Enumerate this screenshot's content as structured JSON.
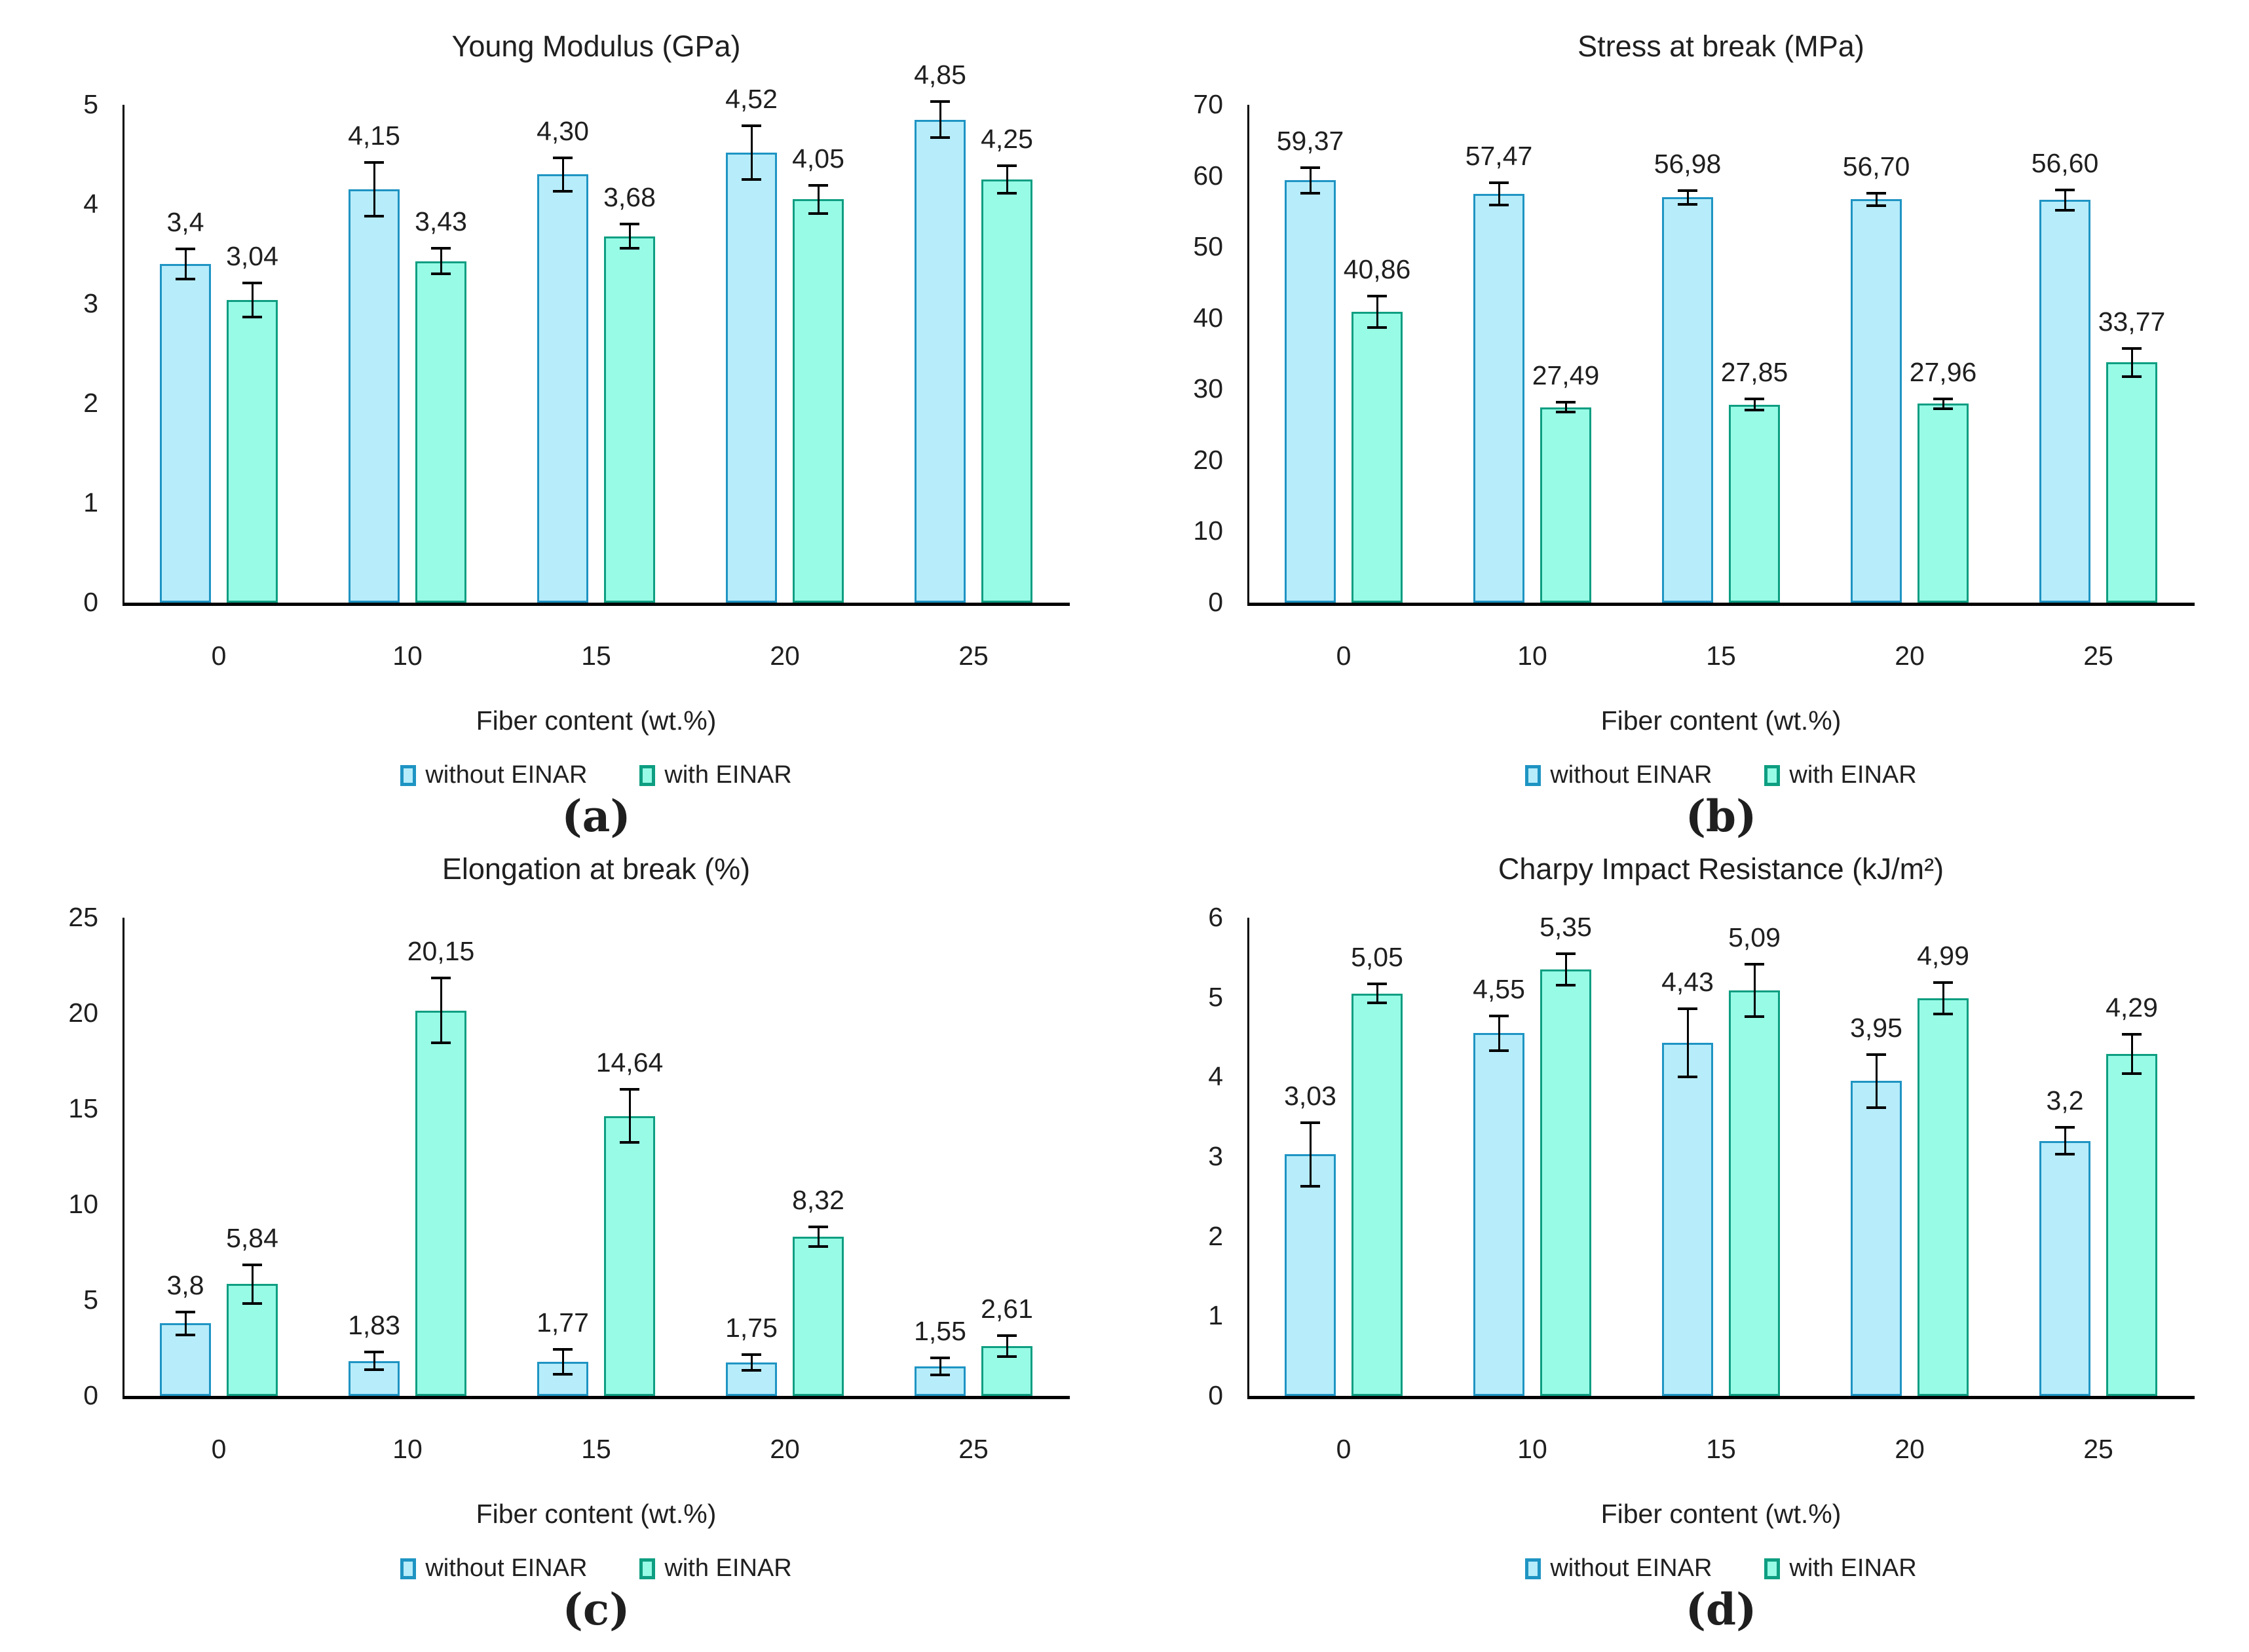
{
  "figure": {
    "xlabel": "Fiber content (wt.%)",
    "legend_labels": [
      "without EINAR",
      "with EINAR"
    ],
    "series_colors": [
      {
        "fill": "#B7ECFA",
        "border": "#1E94C3"
      },
      {
        "fill": "#98FBE6",
        "border": "#0E9E81"
      }
    ],
    "axis_color": "#000000",
    "text_color": "#1F1F1F"
  },
  "chart_data": [
    {
      "type": "bar",
      "title": "Young Modulus (GPa)",
      "caption": "(a)",
      "xlabel": "Fiber content (wt.%)",
      "ylabel": "",
      "categories": [
        "0",
        "10",
        "15",
        "20",
        "25"
      ],
      "ylim": [
        0,
        5
      ],
      "ytick_step": 1,
      "grid": false,
      "legend_position": "bottom",
      "series": [
        {
          "name": "without EINAR",
          "values": [
            3.4,
            4.15,
            4.3,
            4.52,
            4.85
          ],
          "labels": [
            "3,4",
            "4,15",
            "4,30",
            "4,52",
            "4,85"
          ],
          "errors": [
            0.15,
            0.27,
            0.17,
            0.27,
            0.18
          ]
        },
        {
          "name": "with EINAR",
          "values": [
            3.04,
            3.43,
            3.68,
            4.05,
            4.25
          ],
          "labels": [
            "3,04",
            "3,43",
            "3,68",
            "4,05",
            "4,25"
          ],
          "errors": [
            0.17,
            0.13,
            0.12,
            0.14,
            0.14
          ]
        }
      ]
    },
    {
      "type": "bar",
      "title": "Stress at break (MPa)",
      "caption": "(b)",
      "xlabel": "Fiber content (wt.%)",
      "ylabel": "",
      "categories": [
        "0",
        "10",
        "15",
        "20",
        "25"
      ],
      "ylim": [
        0,
        70
      ],
      "ytick_step": 10,
      "grid": false,
      "legend_position": "bottom",
      "series": [
        {
          "name": "without EINAR",
          "values": [
            59.37,
            57.47,
            56.98,
            56.7,
            56.6
          ],
          "labels": [
            "59,37",
            "57,47",
            "56,98",
            "56,70",
            "56,60"
          ],
          "errors": [
            1.8,
            1.6,
            1.0,
            0.9,
            1.4
          ]
        },
        {
          "name": "with EINAR",
          "values": [
            40.86,
            27.49,
            27.85,
            27.96,
            33.77
          ],
          "labels": [
            "40,86",
            "27,49",
            "27,85",
            "27,96",
            "33,77"
          ],
          "errors": [
            2.2,
            0.7,
            0.8,
            0.7,
            2.0
          ]
        }
      ]
    },
    {
      "type": "bar",
      "title": "Elongation at break (%)",
      "caption": "(c)",
      "xlabel": "Fiber content (wt.%)",
      "ylabel": "",
      "categories": [
        "0",
        "10",
        "15",
        "20",
        "25"
      ],
      "ylim": [
        0,
        25
      ],
      "ytick_step": 5,
      "grid": false,
      "legend_position": "bottom",
      "series": [
        {
          "name": "without EINAR",
          "values": [
            3.8,
            1.83,
            1.77,
            1.75,
            1.55
          ],
          "labels": [
            "3,8",
            "1,83",
            "1,77",
            "1,75",
            "1,55"
          ],
          "errors": [
            0.6,
            0.45,
            0.65,
            0.4,
            0.45
          ]
        },
        {
          "name": "with EINAR",
          "values": [
            5.84,
            20.15,
            14.64,
            8.32,
            2.61
          ],
          "labels": [
            "5,84",
            "20,15",
            "14,64",
            "8,32",
            "2,61"
          ],
          "errors": [
            1.0,
            1.7,
            1.4,
            0.5,
            0.55
          ]
        }
      ]
    },
    {
      "type": "bar",
      "title": "Charpy Impact Resistance (kJ/m²)",
      "caption": "(d)",
      "xlabel": "Fiber content (wt.%)",
      "ylabel": "",
      "categories": [
        "0",
        "10",
        "15",
        "20",
        "25"
      ],
      "ylim": [
        0,
        6
      ],
      "ytick_step": 1,
      "grid": false,
      "legend_position": "bottom",
      "series": [
        {
          "name": "without EINAR",
          "values": [
            3.03,
            4.55,
            4.43,
            3.95,
            3.2
          ],
          "labels": [
            "3,03",
            "4,55",
            "4,43",
            "3,95",
            "3,2"
          ],
          "errors": [
            0.4,
            0.22,
            0.43,
            0.33,
            0.17
          ]
        },
        {
          "name": "with EINAR",
          "values": [
            5.05,
            5.35,
            5.09,
            4.99,
            4.29
          ],
          "labels": [
            "5,05",
            "5,35",
            "5,09",
            "4,99",
            "4,29"
          ],
          "errors": [
            0.12,
            0.2,
            0.33,
            0.2,
            0.25
          ]
        }
      ]
    }
  ]
}
